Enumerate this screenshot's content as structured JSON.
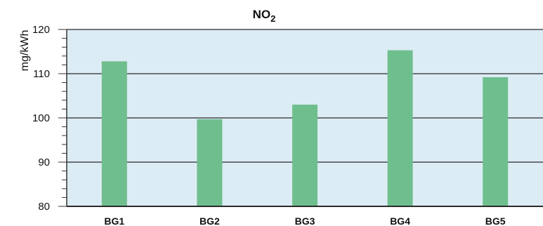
{
  "chart_data": {
    "type": "bar",
    "title": "NO",
    "title_subscript": "2",
    "xlabel": "",
    "ylabel": "mg/kWh",
    "categories": [
      "BG1",
      "BG2",
      "BG3",
      "BG4",
      "BG5"
    ],
    "values": [
      112.8,
      99.7,
      103.0,
      115.3,
      109.2
    ],
    "ylim": [
      80,
      120
    ],
    "yticks": [
      80,
      90,
      100,
      110,
      120
    ],
    "grid": true,
    "legend": "none",
    "colors": {
      "bar": "#6fbf8e",
      "plot_background": "#dcecf5",
      "gridline": "#2a2a2a",
      "axis": "#333333"
    }
  }
}
